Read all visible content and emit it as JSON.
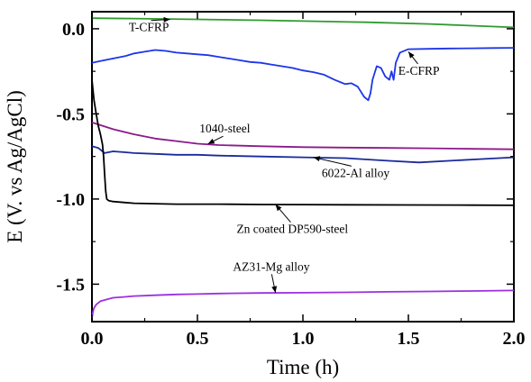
{
  "chart_data": {
    "type": "line",
    "title": "",
    "xlabel": "Time (h)",
    "ylabel": "E (V. vs Ag/AgCl)",
    "xlim": [
      0,
      2.0
    ],
    "ylim": [
      -1.72,
      0.1
    ],
    "x_ticks": [
      0.0,
      0.5,
      1.0,
      1.5,
      2.0
    ],
    "x_tick_labels": [
      "0.0",
      "0.5",
      "1.0",
      "1.5",
      "2.0"
    ],
    "y_ticks": [
      0.0,
      -0.5,
      -1.0,
      -1.5
    ],
    "y_tick_labels": [
      "0.0",
      "-0.5",
      "-1.0",
      "-1.5"
    ],
    "grid": false,
    "legend": "none",
    "series": [
      {
        "name": "T-CFRP",
        "color": "#2e9b2e",
        "points": [
          [
            0,
            0.062
          ],
          [
            0.2,
            0.06
          ],
          [
            0.5,
            0.055
          ],
          [
            0.8,
            0.05
          ],
          [
            1.0,
            0.045
          ],
          [
            1.3,
            0.038
          ],
          [
            1.6,
            0.028
          ],
          [
            1.8,
            0.018
          ],
          [
            2.0,
            0.008
          ]
        ]
      },
      {
        "name": "E-CFRP",
        "color": "#1d35e8",
        "points": [
          [
            0,
            -0.2
          ],
          [
            0.04,
            -0.19
          ],
          [
            0.08,
            -0.18
          ],
          [
            0.12,
            -0.17
          ],
          [
            0.16,
            -0.16
          ],
          [
            0.2,
            -0.145
          ],
          [
            0.25,
            -0.135
          ],
          [
            0.3,
            -0.125
          ],
          [
            0.35,
            -0.13
          ],
          [
            0.4,
            -0.14
          ],
          [
            0.45,
            -0.145
          ],
          [
            0.5,
            -0.15
          ],
          [
            0.55,
            -0.155
          ],
          [
            0.6,
            -0.165
          ],
          [
            0.65,
            -0.175
          ],
          [
            0.7,
            -0.185
          ],
          [
            0.75,
            -0.195
          ],
          [
            0.8,
            -0.2
          ],
          [
            0.85,
            -0.21
          ],
          [
            0.9,
            -0.22
          ],
          [
            0.95,
            -0.23
          ],
          [
            1.0,
            -0.245
          ],
          [
            1.05,
            -0.255
          ],
          [
            1.1,
            -0.27
          ],
          [
            1.15,
            -0.3
          ],
          [
            1.2,
            -0.325
          ],
          [
            1.23,
            -0.32
          ],
          [
            1.26,
            -0.34
          ],
          [
            1.29,
            -0.4
          ],
          [
            1.31,
            -0.42
          ],
          [
            1.32,
            -0.38
          ],
          [
            1.33,
            -0.3
          ],
          [
            1.35,
            -0.22
          ],
          [
            1.37,
            -0.23
          ],
          [
            1.39,
            -0.28
          ],
          [
            1.41,
            -0.3
          ],
          [
            1.42,
            -0.25
          ],
          [
            1.43,
            -0.3
          ],
          [
            1.44,
            -0.2
          ],
          [
            1.46,
            -0.14
          ],
          [
            1.5,
            -0.12
          ],
          [
            1.6,
            -0.118
          ],
          [
            1.7,
            -0.116
          ],
          [
            1.8,
            -0.115
          ],
          [
            1.9,
            -0.113
          ],
          [
            2.0,
            -0.112
          ]
        ]
      },
      {
        "name": "1040-steel",
        "color": "#8b1a8b",
        "points": [
          [
            0,
            -0.55
          ],
          [
            0.05,
            -0.57
          ],
          [
            0.1,
            -0.59
          ],
          [
            0.2,
            -0.62
          ],
          [
            0.3,
            -0.645
          ],
          [
            0.4,
            -0.66
          ],
          [
            0.5,
            -0.675
          ],
          [
            0.6,
            -0.683
          ],
          [
            0.8,
            -0.69
          ],
          [
            1.0,
            -0.695
          ],
          [
            1.2,
            -0.698
          ],
          [
            1.4,
            -0.7
          ],
          [
            1.6,
            -0.702
          ],
          [
            1.8,
            -0.705
          ],
          [
            2.0,
            -0.708
          ]
        ]
      },
      {
        "name": "6022-Al alloy",
        "color": "#1a2a9a",
        "points": [
          [
            0,
            -0.69
          ],
          [
            0.03,
            -0.7
          ],
          [
            0.06,
            -0.73
          ],
          [
            0.1,
            -0.72
          ],
          [
            0.15,
            -0.725
          ],
          [
            0.2,
            -0.73
          ],
          [
            0.3,
            -0.735
          ],
          [
            0.4,
            -0.74
          ],
          [
            0.5,
            -0.74
          ],
          [
            0.6,
            -0.745
          ],
          [
            0.8,
            -0.75
          ],
          [
            1.0,
            -0.755
          ],
          [
            1.2,
            -0.76
          ],
          [
            1.4,
            -0.775
          ],
          [
            1.55,
            -0.785
          ],
          [
            1.7,
            -0.775
          ],
          [
            1.85,
            -0.765
          ],
          [
            2.0,
            -0.755
          ]
        ]
      },
      {
        "name": "Zn coated DP590-steel",
        "color": "#000000",
        "points": [
          [
            0,
            -0.3
          ],
          [
            0.01,
            -0.42
          ],
          [
            0.02,
            -0.5
          ],
          [
            0.03,
            -0.57
          ],
          [
            0.04,
            -0.62
          ],
          [
            0.05,
            -0.68
          ],
          [
            0.055,
            -0.75
          ],
          [
            0.06,
            -0.85
          ],
          [
            0.065,
            -0.95
          ],
          [
            0.07,
            -1.0
          ],
          [
            0.08,
            -1.01
          ],
          [
            0.1,
            -1.015
          ],
          [
            0.15,
            -1.02
          ],
          [
            0.2,
            -1.025
          ],
          [
            0.4,
            -1.03
          ],
          [
            0.6,
            -1.03
          ],
          [
            0.8,
            -1.032
          ],
          [
            1.0,
            -1.033
          ],
          [
            1.2,
            -1.034
          ],
          [
            1.5,
            -1.035
          ],
          [
            1.8,
            -1.036
          ],
          [
            2.0,
            -1.037
          ]
        ]
      },
      {
        "name": "AZ31-Mg alloy",
        "color": "#9b30e0",
        "points": [
          [
            0,
            -1.7
          ],
          [
            0.005,
            -1.66
          ],
          [
            0.01,
            -1.64
          ],
          [
            0.02,
            -1.62
          ],
          [
            0.04,
            -1.6
          ],
          [
            0.07,
            -1.59
          ],
          [
            0.1,
            -1.58
          ],
          [
            0.15,
            -1.575
          ],
          [
            0.2,
            -1.57
          ],
          [
            0.3,
            -1.565
          ],
          [
            0.4,
            -1.56
          ],
          [
            0.5,
            -1.558
          ],
          [
            0.6,
            -1.555
          ],
          [
            0.8,
            -1.552
          ],
          [
            1.0,
            -1.55
          ],
          [
            1.2,
            -1.548
          ],
          [
            1.4,
            -1.545
          ],
          [
            1.6,
            -1.543
          ],
          [
            1.8,
            -1.54
          ],
          [
            2.0,
            -1.537
          ]
        ]
      }
    ],
    "annotations": [
      {
        "text": "T-CFRP",
        "x": 0.27,
        "y": -0.015,
        "arrow_to": [
          0.37,
          0.055
        ]
      },
      {
        "text": "E-CFRP",
        "x": 1.55,
        "y": -0.27,
        "arrow_to": [
          1.5,
          -0.135
        ]
      },
      {
        "text": "1040-steel",
        "x": 0.63,
        "y": -0.61,
        "arrow_to": [
          0.55,
          -0.676
        ]
      },
      {
        "text": "6022-Al alloy",
        "x": 1.25,
        "y": -0.87,
        "arrow_to": [
          1.05,
          -0.755
        ]
      },
      {
        "text": "Zn coated DP590-steel",
        "x": 0.95,
        "y": -1.2,
        "arrow_to": [
          0.87,
          -1.032
        ]
      },
      {
        "text": "AZ31-Mg alloy",
        "x": 0.85,
        "y": -1.42,
        "arrow_to": [
          0.87,
          -1.55
        ]
      }
    ]
  }
}
